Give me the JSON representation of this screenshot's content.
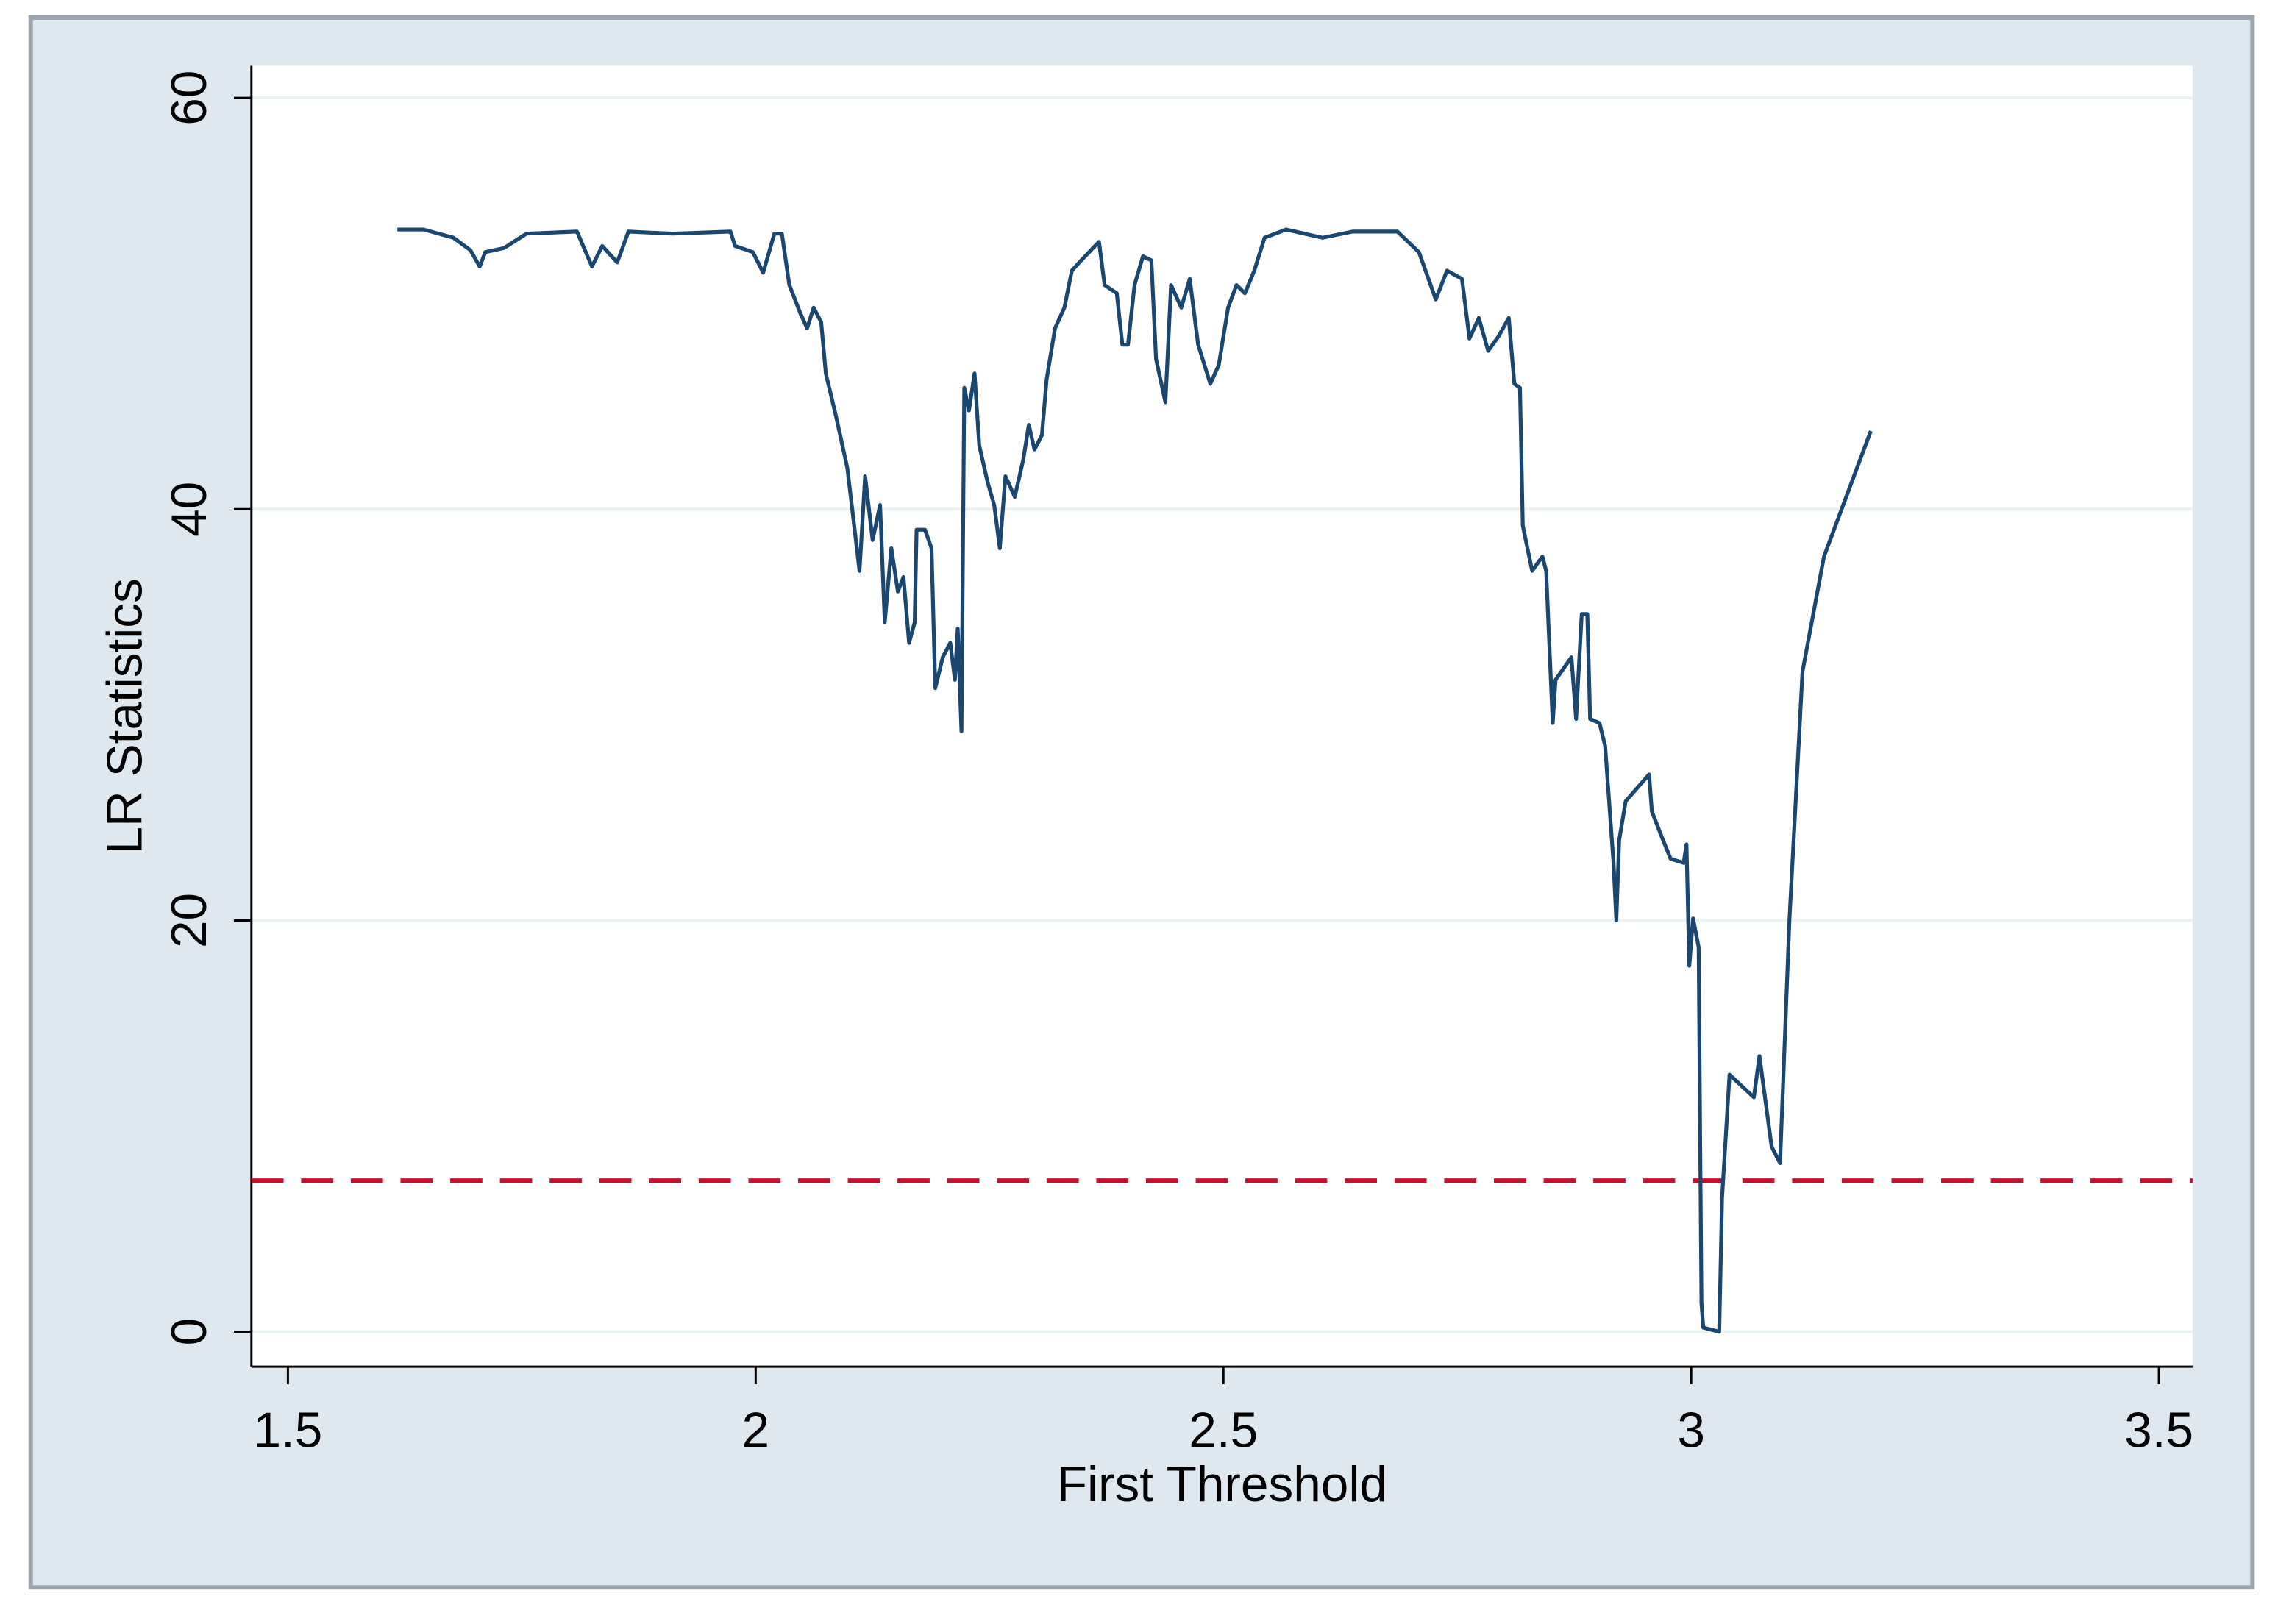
{
  "chart_data": {
    "type": "line",
    "x_label": "First Threshold",
    "y_label": "LR Statistics",
    "xlim": [
      1.461,
      3.536
    ],
    "ylim": [
      -1.7,
      61.56
    ],
    "xticks": [
      1.5,
      2,
      2.5,
      3,
      3.5
    ],
    "yticks": [
      0,
      20,
      40,
      60
    ],
    "grid": true,
    "reference_line": {
      "value": 7.35,
      "color": "#c8102e"
    },
    "series": [
      {
        "color": "#1a476f",
        "x": [
          1.617,
          1.645,
          1.677,
          1.695,
          1.705,
          1.711,
          1.731,
          1.755,
          1.809,
          1.825,
          1.836,
          1.852,
          1.864,
          1.911,
          1.973,
          1.978,
          1.997,
          2.008,
          2.02,
          2.028,
          2.036,
          2.048,
          2.055,
          2.062,
          2.07,
          2.075,
          2.086,
          2.098,
          2.111,
          2.117,
          2.125,
          2.133,
          2.138,
          2.145,
          2.152,
          2.158,
          2.164,
          2.17,
          2.172,
          2.181,
          2.188,
          2.192,
          2.2,
          2.208,
          2.213,
          2.216,
          2.22,
          2.223,
          2.228,
          2.234,
          2.239,
          2.248,
          2.255,
          2.261,
          2.267,
          2.277,
          2.286,
          2.292,
          2.298,
          2.306,
          2.311,
          2.32,
          2.33,
          2.338,
          2.348,
          2.367,
          2.373,
          2.386,
          2.392,
          2.398,
          2.405,
          2.414,
          2.423,
          2.428,
          2.438,
          2.444,
          2.455,
          2.464,
          2.473,
          2.486,
          2.495,
          2.505,
          2.514,
          2.523,
          2.533,
          2.544,
          2.567,
          2.606,
          2.638,
          2.686,
          2.709,
          2.727,
          2.739,
          2.755,
          2.763,
          2.773,
          2.783,
          2.794,
          2.805,
          2.811,
          2.817,
          2.82,
          2.83,
          2.841,
          2.845,
          2.852,
          2.855,
          2.872,
          2.877,
          2.883,
          2.889,
          2.892,
          2.902,
          2.908,
          2.917,
          2.92,
          2.923,
          2.93,
          2.955,
          2.958,
          2.97,
          2.978,
          2.992,
          2.995,
          2.998,
          3.002,
          3.008,
          3.011,
          3.013,
          3.03,
          3.033,
          3.041,
          3.067,
          3.073,
          3.086,
          3.095,
          3.105,
          3.119,
          3.142,
          3.192
        ],
        "values": [
          53.6,
          53.6,
          53.2,
          52.6,
          51.8,
          52.5,
          52.7,
          53.4,
          53.5,
          51.8,
          52.8,
          52.0,
          53.5,
          53.4,
          53.5,
          52.8,
          52.5,
          51.5,
          53.4,
          53.4,
          50.9,
          49.5,
          48.8,
          49.8,
          49.1,
          46.6,
          44.5,
          42.0,
          37.0,
          41.6,
          38.5,
          40.2,
          34.5,
          38.1,
          36.0,
          36.7,
          33.5,
          34.5,
          39.0,
          39.0,
          38.1,
          31.3,
          32.8,
          33.5,
          31.7,
          34.2,
          29.2,
          45.9,
          44.8,
          46.6,
          43.1,
          41.3,
          40.2,
          38.1,
          41.6,
          40.6,
          42.4,
          44.1,
          42.9,
          43.6,
          46.3,
          48.8,
          49.8,
          51.6,
          52.1,
          53.0,
          50.9,
          50.5,
          48.0,
          48.0,
          50.9,
          52.3,
          52.1,
          47.3,
          45.2,
          50.9,
          49.8,
          51.2,
          48.0,
          46.1,
          47.0,
          49.8,
          50.9,
          50.5,
          51.6,
          53.2,
          53.6,
          53.2,
          53.5,
          53.5,
          52.5,
          50.2,
          51.6,
          51.2,
          48.3,
          49.3,
          47.7,
          48.4,
          49.3,
          46.1,
          45.9,
          39.2,
          37.0,
          37.7,
          37.0,
          29.6,
          31.7,
          32.8,
          29.8,
          34.9,
          34.9,
          29.8,
          29.6,
          28.5,
          22.8,
          20.0,
          23.9,
          25.8,
          27.1,
          25.3,
          23.9,
          23.0,
          22.8,
          23.7,
          17.8,
          20.1,
          18.7,
          1.4,
          0.2,
          0,
          6.5,
          12.5,
          11.4,
          13.4,
          9.0,
          8.2,
          20.0,
          32.1,
          37.7,
          43.8
        ]
      }
    ]
  }
}
